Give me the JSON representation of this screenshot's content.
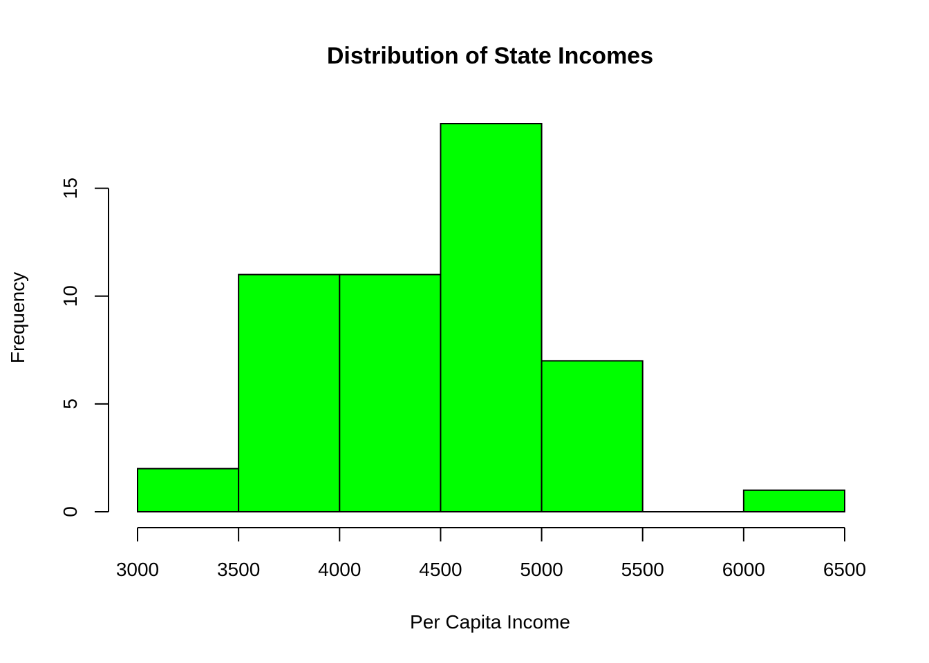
{
  "chart_data": {
    "type": "bar",
    "subtype": "histogram",
    "title": "Distribution of State Incomes",
    "xlabel": "Per Capita Income",
    "ylabel": "Frequency",
    "bins": [
      {
        "start": 3000,
        "end": 3500,
        "count": 2
      },
      {
        "start": 3500,
        "end": 4000,
        "count": 11
      },
      {
        "start": 4000,
        "end": 4500,
        "count": 11
      },
      {
        "start": 4500,
        "end": 5000,
        "count": 18
      },
      {
        "start": 5000,
        "end": 5500,
        "count": 7
      },
      {
        "start": 5500,
        "end": 6000,
        "count": 0
      },
      {
        "start": 6000,
        "end": 6500,
        "count": 1
      }
    ],
    "xlim": [
      3000,
      6500
    ],
    "ylim": [
      0,
      18
    ],
    "x_ticks": [
      3000,
      3500,
      4000,
      4500,
      5000,
      5500,
      6000,
      6500
    ],
    "y_ticks": [
      0,
      5,
      10,
      15
    ],
    "bar_color": "#00ff00",
    "border_color": "#000000",
    "grid": false,
    "legend": "none"
  }
}
